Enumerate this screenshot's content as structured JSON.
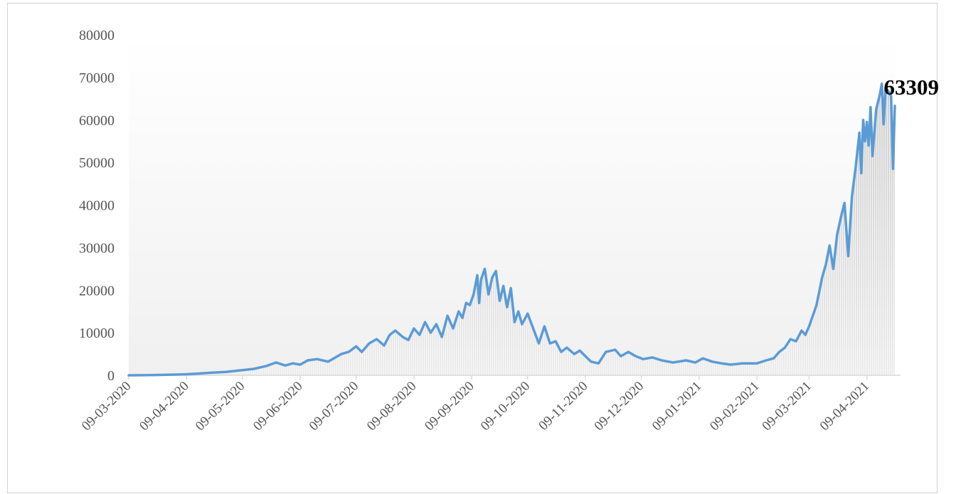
{
  "chart_data": {
    "type": "line",
    "title": "",
    "xlabel": "",
    "ylabel": "",
    "ylim": [
      0,
      80000
    ],
    "yticks": [
      "0",
      "10000",
      "20000",
      "30000",
      "40000",
      "50000",
      "60000",
      "70000",
      "80000"
    ],
    "xtick_labels": [
      "09-03-2020",
      "09-04-2020",
      "09-05-2020",
      "09-06-2020",
      "09-07-2020",
      "09-08-2020",
      "09-09-2020",
      "09-10-2020",
      "09-11-2020",
      "09-12-2020",
      "09-01-2021",
      "09-02-2021",
      "09-03-2021",
      "09-04-2021"
    ],
    "x_range": [
      "2020-03-09",
      "2021-04-24"
    ],
    "annotation": {
      "label": "63309",
      "date": "2021-04-24",
      "value": 63309
    },
    "grid": false,
    "legend": "none",
    "series": [
      {
        "points": [
          [
            "2020-03-09",
            0
          ],
          [
            "2020-03-20",
            30
          ],
          [
            "2020-04-01",
            150
          ],
          [
            "2020-04-09",
            250
          ],
          [
            "2020-04-15",
            400
          ],
          [
            "2020-04-22",
            600
          ],
          [
            "2020-04-30",
            800
          ],
          [
            "2020-05-09",
            1200
          ],
          [
            "2020-05-15",
            1500
          ],
          [
            "2020-05-22",
            2200
          ],
          [
            "2020-05-27",
            3000
          ],
          [
            "2020-06-01",
            2300
          ],
          [
            "2020-06-05",
            2800
          ],
          [
            "2020-06-09",
            2500
          ],
          [
            "2020-06-13",
            3500
          ],
          [
            "2020-06-18",
            3800
          ],
          [
            "2020-06-24",
            3200
          ],
          [
            "2020-07-01",
            5000
          ],
          [
            "2020-07-05",
            5500
          ],
          [
            "2020-07-09",
            6800
          ],
          [
            "2020-07-12",
            5500
          ],
          [
            "2020-07-16",
            7500
          ],
          [
            "2020-07-20",
            8500
          ],
          [
            "2020-07-24",
            7000
          ],
          [
            "2020-07-27",
            9500
          ],
          [
            "2020-07-30",
            10500
          ],
          [
            "2020-08-03",
            9000
          ],
          [
            "2020-08-06",
            8300
          ],
          [
            "2020-08-09",
            11000
          ],
          [
            "2020-08-12",
            9500
          ],
          [
            "2020-08-15",
            12500
          ],
          [
            "2020-08-18",
            10000
          ],
          [
            "2020-08-21",
            12000
          ],
          [
            "2020-08-24",
            9000
          ],
          [
            "2020-08-27",
            14000
          ],
          [
            "2020-08-30",
            11000
          ],
          [
            "2020-09-02",
            15000
          ],
          [
            "2020-09-04",
            13500
          ],
          [
            "2020-09-06",
            17000
          ],
          [
            "2020-09-08",
            16500
          ],
          [
            "2020-09-10",
            19000
          ],
          [
            "2020-09-12",
            23500
          ],
          [
            "2020-09-13",
            17000
          ],
          [
            "2020-09-14",
            22500
          ],
          [
            "2020-09-16",
            25000
          ],
          [
            "2020-09-18",
            19000
          ],
          [
            "2020-09-20",
            23000
          ],
          [
            "2020-09-22",
            24500
          ],
          [
            "2020-09-24",
            17500
          ],
          [
            "2020-09-26",
            21000
          ],
          [
            "2020-09-28",
            16000
          ],
          [
            "2020-09-30",
            20500
          ],
          [
            "2020-10-02",
            12500
          ],
          [
            "2020-10-04",
            15000
          ],
          [
            "2020-10-06",
            12000
          ],
          [
            "2020-10-09",
            14500
          ],
          [
            "2020-10-12",
            11000
          ],
          [
            "2020-10-15",
            7500
          ],
          [
            "2020-10-18",
            11500
          ],
          [
            "2020-10-21",
            7500
          ],
          [
            "2020-10-24",
            8000
          ],
          [
            "2020-10-27",
            5500
          ],
          [
            "2020-10-30",
            6500
          ],
          [
            "2020-11-03",
            5000
          ],
          [
            "2020-11-06",
            5800
          ],
          [
            "2020-11-09",
            4500
          ],
          [
            "2020-11-12",
            3200
          ],
          [
            "2020-11-16",
            2800
          ],
          [
            "2020-11-20",
            5500
          ],
          [
            "2020-11-25",
            6000
          ],
          [
            "2020-11-28",
            4500
          ],
          [
            "2020-12-02",
            5500
          ],
          [
            "2020-12-06",
            4500
          ],
          [
            "2020-12-10",
            3800
          ],
          [
            "2020-12-15",
            4200
          ],
          [
            "2020-12-20",
            3500
          ],
          [
            "2020-12-26",
            3000
          ],
          [
            "2021-01-02",
            3500
          ],
          [
            "2021-01-07",
            3000
          ],
          [
            "2021-01-11",
            4000
          ],
          [
            "2021-01-16",
            3200
          ],
          [
            "2021-01-21",
            2800
          ],
          [
            "2021-01-26",
            2500
          ],
          [
            "2021-02-01",
            2800
          ],
          [
            "2021-02-09",
            2800
          ],
          [
            "2021-02-14",
            3500
          ],
          [
            "2021-02-18",
            4000
          ],
          [
            "2021-02-21",
            5500
          ],
          [
            "2021-02-24",
            6500
          ],
          [
            "2021-02-27",
            8500
          ],
          [
            "2021-03-02",
            8000
          ],
          [
            "2021-03-05",
            10500
          ],
          [
            "2021-03-07",
            9500
          ],
          [
            "2021-03-09",
            11500
          ],
          [
            "2021-03-11",
            14000
          ],
          [
            "2021-03-13",
            16500
          ],
          [
            "2021-03-16",
            23000
          ],
          [
            "2021-03-18",
            26000
          ],
          [
            "2021-03-20",
            30500
          ],
          [
            "2021-03-22",
            25000
          ],
          [
            "2021-03-24",
            33000
          ],
          [
            "2021-03-26",
            37000
          ],
          [
            "2021-03-28",
            40500
          ],
          [
            "2021-03-30",
            28000
          ],
          [
            "2021-04-01",
            42000
          ],
          [
            "2021-04-03",
            49000
          ],
          [
            "2021-04-05",
            57000
          ],
          [
            "2021-04-06",
            47500
          ],
          [
            "2021-04-07",
            60000
          ],
          [
            "2021-04-08",
            55000
          ],
          [
            "2021-04-09",
            59500
          ],
          [
            "2021-04-10",
            54000
          ],
          [
            "2021-04-11",
            63000
          ],
          [
            "2021-04-12",
            51500
          ],
          [
            "2021-04-14",
            62500
          ],
          [
            "2021-04-16",
            66000
          ],
          [
            "2021-04-17",
            68500
          ],
          [
            "2021-04-18",
            59000
          ],
          [
            "2021-04-19",
            67500
          ],
          [
            "2021-04-21",
            66500
          ],
          [
            "2021-04-22",
            65500
          ],
          [
            "2021-04-23",
            48500
          ],
          [
            "2021-04-24",
            63309
          ]
        ]
      }
    ]
  },
  "colors": {
    "line": "#5b9bd5",
    "area_top": "#cfcfcf",
    "area_stripe": "#ffffff",
    "axis": "#d9d9d9",
    "tick_text": "#555555",
    "frame": "#d0d0d0"
  }
}
